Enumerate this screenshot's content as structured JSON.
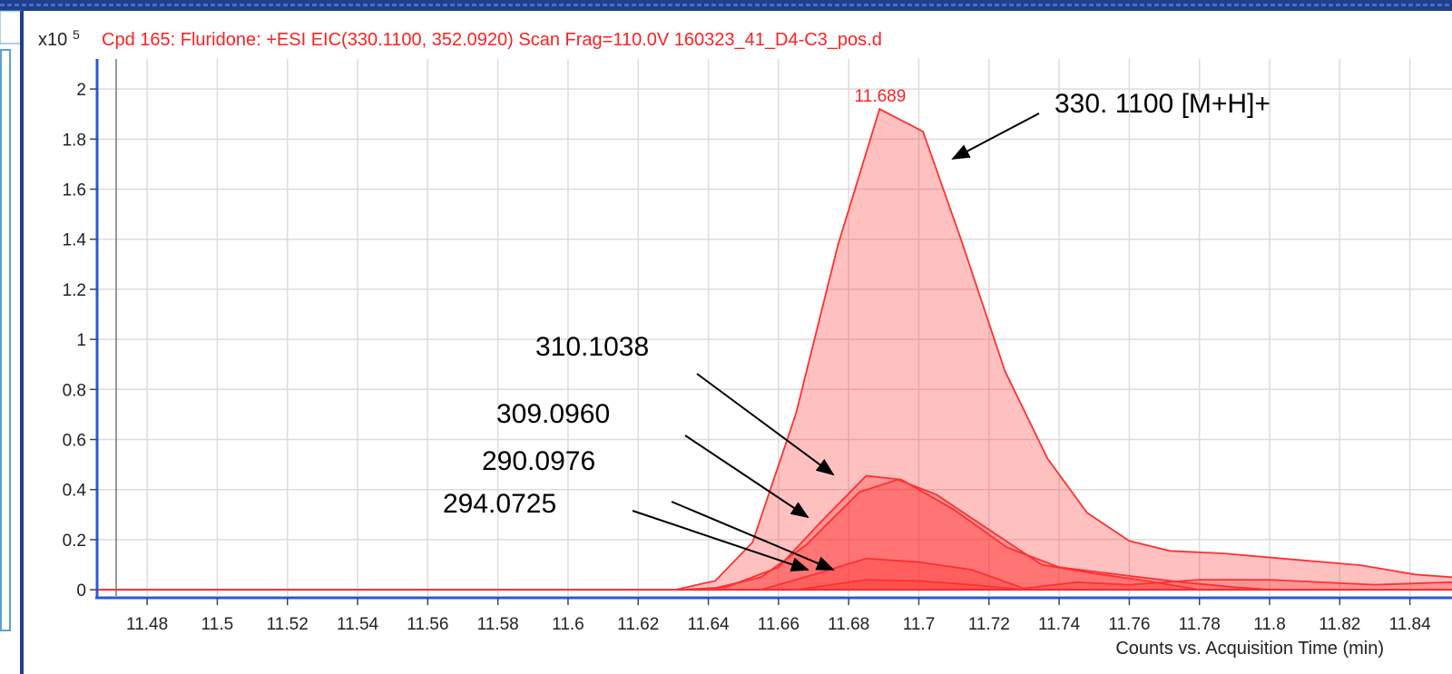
{
  "chart_data": {
    "type": "area",
    "title": "Cpd 165: Fluridone: +ESI EIC(330.1100, 352.0920) Scan Frag=110.0V 160323_41_D4-C3_pos.d",
    "y_multiplier": "x10",
    "y_exponent": "5",
    "x_label": "Counts vs. Acquisition Time (min)",
    "peak_label": 11.689,
    "xlim": [
      11.466,
      11.852
    ],
    "ylim": [
      -0.025,
      2.12
    ],
    "xticks": [
      11.48,
      11.5,
      11.52,
      11.54,
      11.56,
      11.58,
      11.6,
      11.62,
      11.64,
      11.66,
      11.68,
      11.7,
      11.72,
      11.74,
      11.76,
      11.78,
      11.8,
      11.82,
      11.84
    ],
    "yticks": [
      0,
      0.2,
      0.4,
      0.6,
      0.8,
      1,
      1.2,
      1.4,
      1.6,
      1.8,
      2
    ],
    "grid": true,
    "series": [
      {
        "name": "330. 1100 [M+H]+",
        "color": "#ff3030",
        "x": [
          11.466,
          11.6306,
          11.642,
          11.6526,
          11.665,
          11.677,
          11.6888,
          11.7012,
          11.712,
          11.7245,
          11.7367,
          11.748,
          11.76,
          11.7716,
          11.787,
          11.805,
          11.826,
          11.8415,
          11.852
        ],
        "values": [
          0,
          0,
          0.036,
          0.19,
          0.705,
          1.38,
          1.92,
          1.83,
          1.4,
          0.875,
          0.524,
          0.307,
          0.195,
          0.155,
          0.145,
          0.123,
          0.098,
          0.061,
          0.05
        ]
      },
      {
        "name": "310.1038",
        "color": "#ff3030",
        "x": [
          11.633,
          11.645,
          11.66,
          11.672,
          11.685,
          11.695,
          11.71,
          11.725,
          11.74,
          11.76,
          11.775,
          11.79,
          11.8
        ],
        "values": [
          0,
          0.01,
          0.09,
          0.27,
          0.455,
          0.44,
          0.32,
          0.17,
          0.09,
          0.055,
          0.03,
          0.01,
          0
        ]
      },
      {
        "name": "309.0960",
        "color": "#ff3030",
        "x": [
          11.64,
          11.655,
          11.668,
          11.683,
          11.694,
          11.705,
          11.72,
          11.735,
          11.75,
          11.765,
          11.78
        ],
        "values": [
          0,
          0.05,
          0.18,
          0.39,
          0.44,
          0.38,
          0.24,
          0.1,
          0.065,
          0.035,
          0
        ]
      },
      {
        "name": "290.0976",
        "color": "#ff3030",
        "x": [
          11.655,
          11.67,
          11.685,
          11.7,
          11.715,
          11.73,
          11.745,
          11.76,
          11.78,
          11.8,
          11.83,
          11.852
        ],
        "values": [
          0,
          0.06,
          0.125,
          0.11,
          0.08,
          0.005,
          0.03,
          0.02,
          0.04,
          0.04,
          0.02,
          0.03
        ]
      },
      {
        "name": "294.0725",
        "color": "#ff3030",
        "x": [
          11.665,
          11.685,
          11.7,
          11.715,
          11.73
        ],
        "values": [
          0,
          0.04,
          0.035,
          0.02,
          0
        ]
      }
    ]
  }
}
